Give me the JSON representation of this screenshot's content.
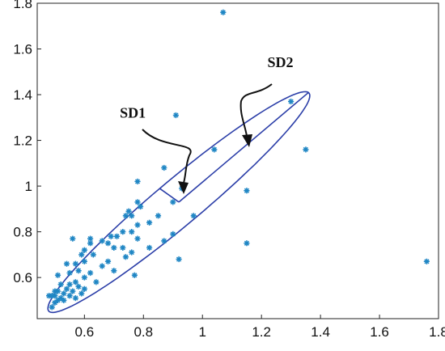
{
  "chart_data": {
    "type": "scatter",
    "title": "",
    "xlabel": "",
    "ylabel": "",
    "xlim": [
      0.44,
      1.8
    ],
    "ylim": [
      0.42,
      1.8
    ],
    "xticks": [
      0.6,
      0.8,
      1,
      1.2,
      1.4,
      1.6,
      1.8
    ],
    "xtick_labels": [
      "0.6",
      "0.8",
      "1",
      "1.2",
      "1.4",
      "1.6",
      "1.8"
    ],
    "yticks": [
      0.6,
      0.8,
      1,
      1.2,
      1.4,
      1.6,
      1.8
    ],
    "ytick_labels": [
      "0.6",
      "0.8",
      "1",
      "1.2",
      "1.4",
      "1.6",
      "1.8"
    ],
    "grid": false,
    "legend": "none",
    "marker": "asterisk",
    "colors": {
      "points": "#1f86c4",
      "ellipse": "#2b3ea8",
      "axes": "#222222",
      "arrows": "#111111"
    },
    "points": [
      [
        1.07,
        1.76
      ],
      [
        0.91,
        1.31
      ],
      [
        1.3,
        1.37
      ],
      [
        1.35,
        1.16
      ],
      [
        1.04,
        1.16
      ],
      [
        0.87,
        1.08
      ],
      [
        0.78,
        1.02
      ],
      [
        0.93,
        0.99
      ],
      [
        1.15,
        0.98
      ],
      [
        0.97,
        0.87
      ],
      [
        0.78,
        0.93
      ],
      [
        0.79,
        0.91
      ],
      [
        0.74,
        0.87
      ],
      [
        0.76,
        0.87
      ],
      [
        0.75,
        0.89
      ],
      [
        0.85,
        0.87
      ],
      [
        0.82,
        0.84
      ],
      [
        0.78,
        0.83
      ],
      [
        0.76,
        0.8
      ],
      [
        0.73,
        0.8
      ],
      [
        0.78,
        0.77
      ],
      [
        0.71,
        0.78
      ],
      [
        0.69,
        0.78
      ],
      [
        0.66,
        0.76
      ],
      [
        0.68,
        0.75
      ],
      [
        0.62,
        0.77
      ],
      [
        0.62,
        0.75
      ],
      [
        0.56,
        0.77
      ],
      [
        0.6,
        0.72
      ],
      [
        0.63,
        0.7
      ],
      [
        0.59,
        0.7
      ],
      [
        0.7,
        0.73
      ],
      [
        0.73,
        0.73
      ],
      [
        0.76,
        0.71
      ],
      [
        0.82,
        0.73
      ],
      [
        0.9,
        0.79
      ],
      [
        0.87,
        0.76
      ],
      [
        1.15,
        0.75
      ],
      [
        0.74,
        0.69
      ],
      [
        0.68,
        0.67
      ],
      [
        0.66,
        0.65
      ],
      [
        0.6,
        0.67
      ],
      [
        0.57,
        0.66
      ],
      [
        0.54,
        0.66
      ],
      [
        0.7,
        0.63
      ],
      [
        0.77,
        0.61
      ],
      [
        0.62,
        0.62
      ],
      [
        0.58,
        0.63
      ],
      [
        0.55,
        0.62
      ],
      [
        0.51,
        0.61
      ],
      [
        0.64,
        0.58
      ],
      [
        0.6,
        0.6
      ],
      [
        0.57,
        0.58
      ],
      [
        0.55,
        0.57
      ],
      [
        0.54,
        0.55
      ],
      [
        0.52,
        0.57
      ],
      [
        0.51,
        0.54
      ],
      [
        0.5,
        0.52
      ],
      [
        0.49,
        0.52
      ],
      [
        0.48,
        0.52
      ],
      [
        0.5,
        0.49
      ],
      [
        0.51,
        0.5
      ],
      [
        0.52,
        0.51
      ],
      [
        0.53,
        0.53
      ],
      [
        0.53,
        0.5
      ],
      [
        0.55,
        0.52
      ],
      [
        0.56,
        0.54
      ],
      [
        0.57,
        0.51
      ],
      [
        0.59,
        0.53
      ],
      [
        0.6,
        0.55
      ],
      [
        0.58,
        0.56
      ],
      [
        0.5,
        0.54
      ],
      [
        0.49,
        0.47
      ],
      [
        0.92,
        0.68
      ],
      [
        1.76,
        0.67
      ],
      [
        0.9,
        0.93
      ]
    ],
    "ellipse": {
      "center": [
        0.92,
        0.93
      ],
      "angle_deg": 47.5,
      "sd2_semi_axis": 0.65,
      "sd1_semi_axis": 0.088
    },
    "annotations": [
      {
        "text": "SD1",
        "x": 0.72,
        "y": 1.3
      },
      {
        "text": "SD2",
        "x": 1.22,
        "y": 1.52
      }
    ]
  }
}
